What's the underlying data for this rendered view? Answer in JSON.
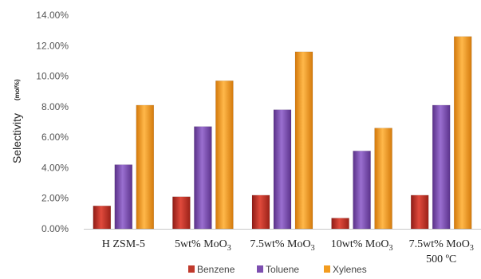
{
  "chart_data": {
    "type": "bar",
    "title": "",
    "ylabel": "Selectivity",
    "ylabel_unit": "(mol%)",
    "xlabel": "",
    "ylim": [
      0,
      14
    ],
    "yticks": [
      "0.00%",
      "2.00%",
      "4.00%",
      "6.00%",
      "8.00%",
      "10.00%",
      "12.00%",
      "14.00%"
    ],
    "grid": false,
    "legend_position": "bottom",
    "categories": [
      {
        "line1_pre": "H ZSM-5",
        "line1_sub": "",
        "line2": ""
      },
      {
        "line1_pre": "5wt% MoO",
        "line1_sub": "3",
        "line2": ""
      },
      {
        "line1_pre": "7.5wt% MoO",
        "line1_sub": "3",
        "line2": ""
      },
      {
        "line1_pre": "10wt% MoO",
        "line1_sub": "3",
        "line2": ""
      },
      {
        "line1_pre": "7.5wt% MoO",
        "line1_sub": "3",
        "line2": "500 ºC"
      }
    ],
    "series": [
      {
        "name": "Benzene",
        "color": "#c0392b",
        "values": [
          1.5,
          2.1,
          2.2,
          0.7,
          2.2
        ]
      },
      {
        "name": "Toluene",
        "color": "#7d4fb0",
        "values": [
          4.2,
          6.7,
          7.8,
          5.1,
          8.1
        ]
      },
      {
        "name": "Xylenes",
        "color": "#f39c1f",
        "values": [
          8.1,
          9.7,
          11.6,
          6.6,
          12.6
        ]
      }
    ]
  }
}
